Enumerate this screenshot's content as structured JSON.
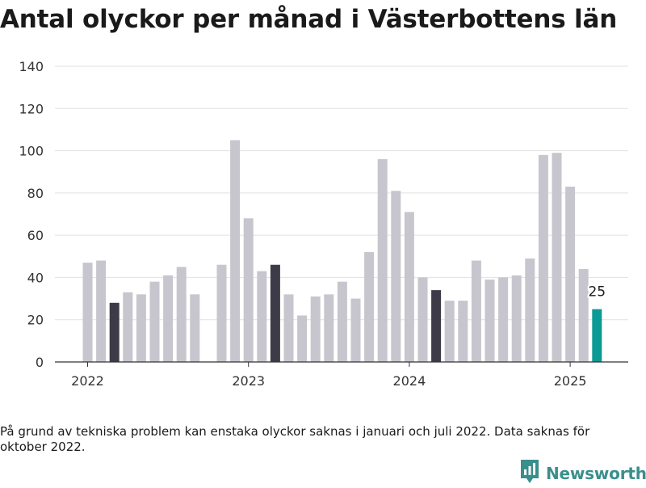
{
  "title": "Antal olyckor per månad i Västerbottens län",
  "note": "På grund av tekniska problem kan enstaka olyckor saknas i januari och juli 2022. Data saknas för oktober 2022.",
  "brand": {
    "name": "Newsworthy",
    "icon": "newsworthy-logo-icon"
  },
  "colors": {
    "default": "#c7c6ce",
    "highlight": "#3c3b47",
    "latest": "#0c9a94",
    "grid": "#e1e1e1",
    "axis": "#333333"
  },
  "chart_data": {
    "type": "bar",
    "title": "Antal olyckor per månad i Västerbottens län",
    "xlabel": "",
    "ylabel": "",
    "ylim": [
      0,
      140
    ],
    "yticks": [
      0,
      20,
      40,
      60,
      80,
      100,
      120,
      140
    ],
    "grid": true,
    "x_tick_labels": [
      {
        "label": "2022",
        "month": "2022-01"
      },
      {
        "label": "2023",
        "month": "2023-01"
      },
      {
        "label": "2024",
        "month": "2024-01"
      },
      {
        "label": "2025",
        "month": "2025-01"
      }
    ],
    "months": [
      "2022-01",
      "2022-02",
      "2022-03",
      "2022-04",
      "2022-05",
      "2022-06",
      "2022-07",
      "2022-08",
      "2022-09",
      "2022-10",
      "2022-11",
      "2022-12",
      "2023-01",
      "2023-02",
      "2023-03",
      "2023-04",
      "2023-05",
      "2023-06",
      "2023-07",
      "2023-08",
      "2023-09",
      "2023-10",
      "2023-11",
      "2023-12",
      "2024-01",
      "2024-02",
      "2024-03",
      "2024-04",
      "2024-05",
      "2024-06",
      "2024-07",
      "2024-08",
      "2024-09",
      "2024-10",
      "2024-11",
      "2024-12",
      "2025-01",
      "2025-02",
      "2025-03"
    ],
    "values": [
      47,
      48,
      28,
      33,
      32,
      38,
      41,
      45,
      32,
      null,
      46,
      105,
      68,
      43,
      46,
      32,
      22,
      31,
      32,
      38,
      30,
      52,
      96,
      81,
      71,
      40,
      34,
      29,
      29,
      48,
      39,
      40,
      41,
      49,
      98,
      99,
      83,
      44,
      25
    ],
    "highlighted_months": [
      "2022-03",
      "2023-03",
      "2024-03"
    ],
    "latest_month": "2025-03",
    "annotations": [
      {
        "month": "2025-03",
        "text": "25"
      }
    ]
  }
}
